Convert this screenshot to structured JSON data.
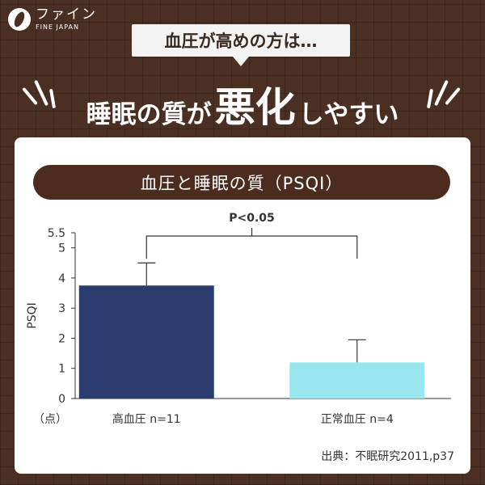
{
  "brand": {
    "name_jp": "ファイン",
    "name_en": "FINE JAPAN"
  },
  "subtitle": "血圧が高めの方は…",
  "headline": {
    "part1": "睡眠の質が",
    "emphasis": "悪化",
    "part2": "しやすい"
  },
  "chart_data": {
    "type": "bar",
    "title": "血圧と睡眠の質（PSQI）",
    "ylabel": "PSQI",
    "yunit": "（点）",
    "ylim": [
      0,
      5.5
    ],
    "yticks": [
      0,
      1,
      2,
      3,
      4,
      5,
      5.5
    ],
    "categories": [
      "高血圧 n=11",
      "正常血圧 n=4"
    ],
    "values": [
      3.75,
      1.2
    ],
    "error_upper": [
      4.5,
      1.95
    ],
    "colors": [
      "#2b3d6f",
      "#9ae6ee"
    ],
    "annotation": "P<0.05",
    "grid": false
  },
  "source": "出典：不眠研究2011,p37"
}
